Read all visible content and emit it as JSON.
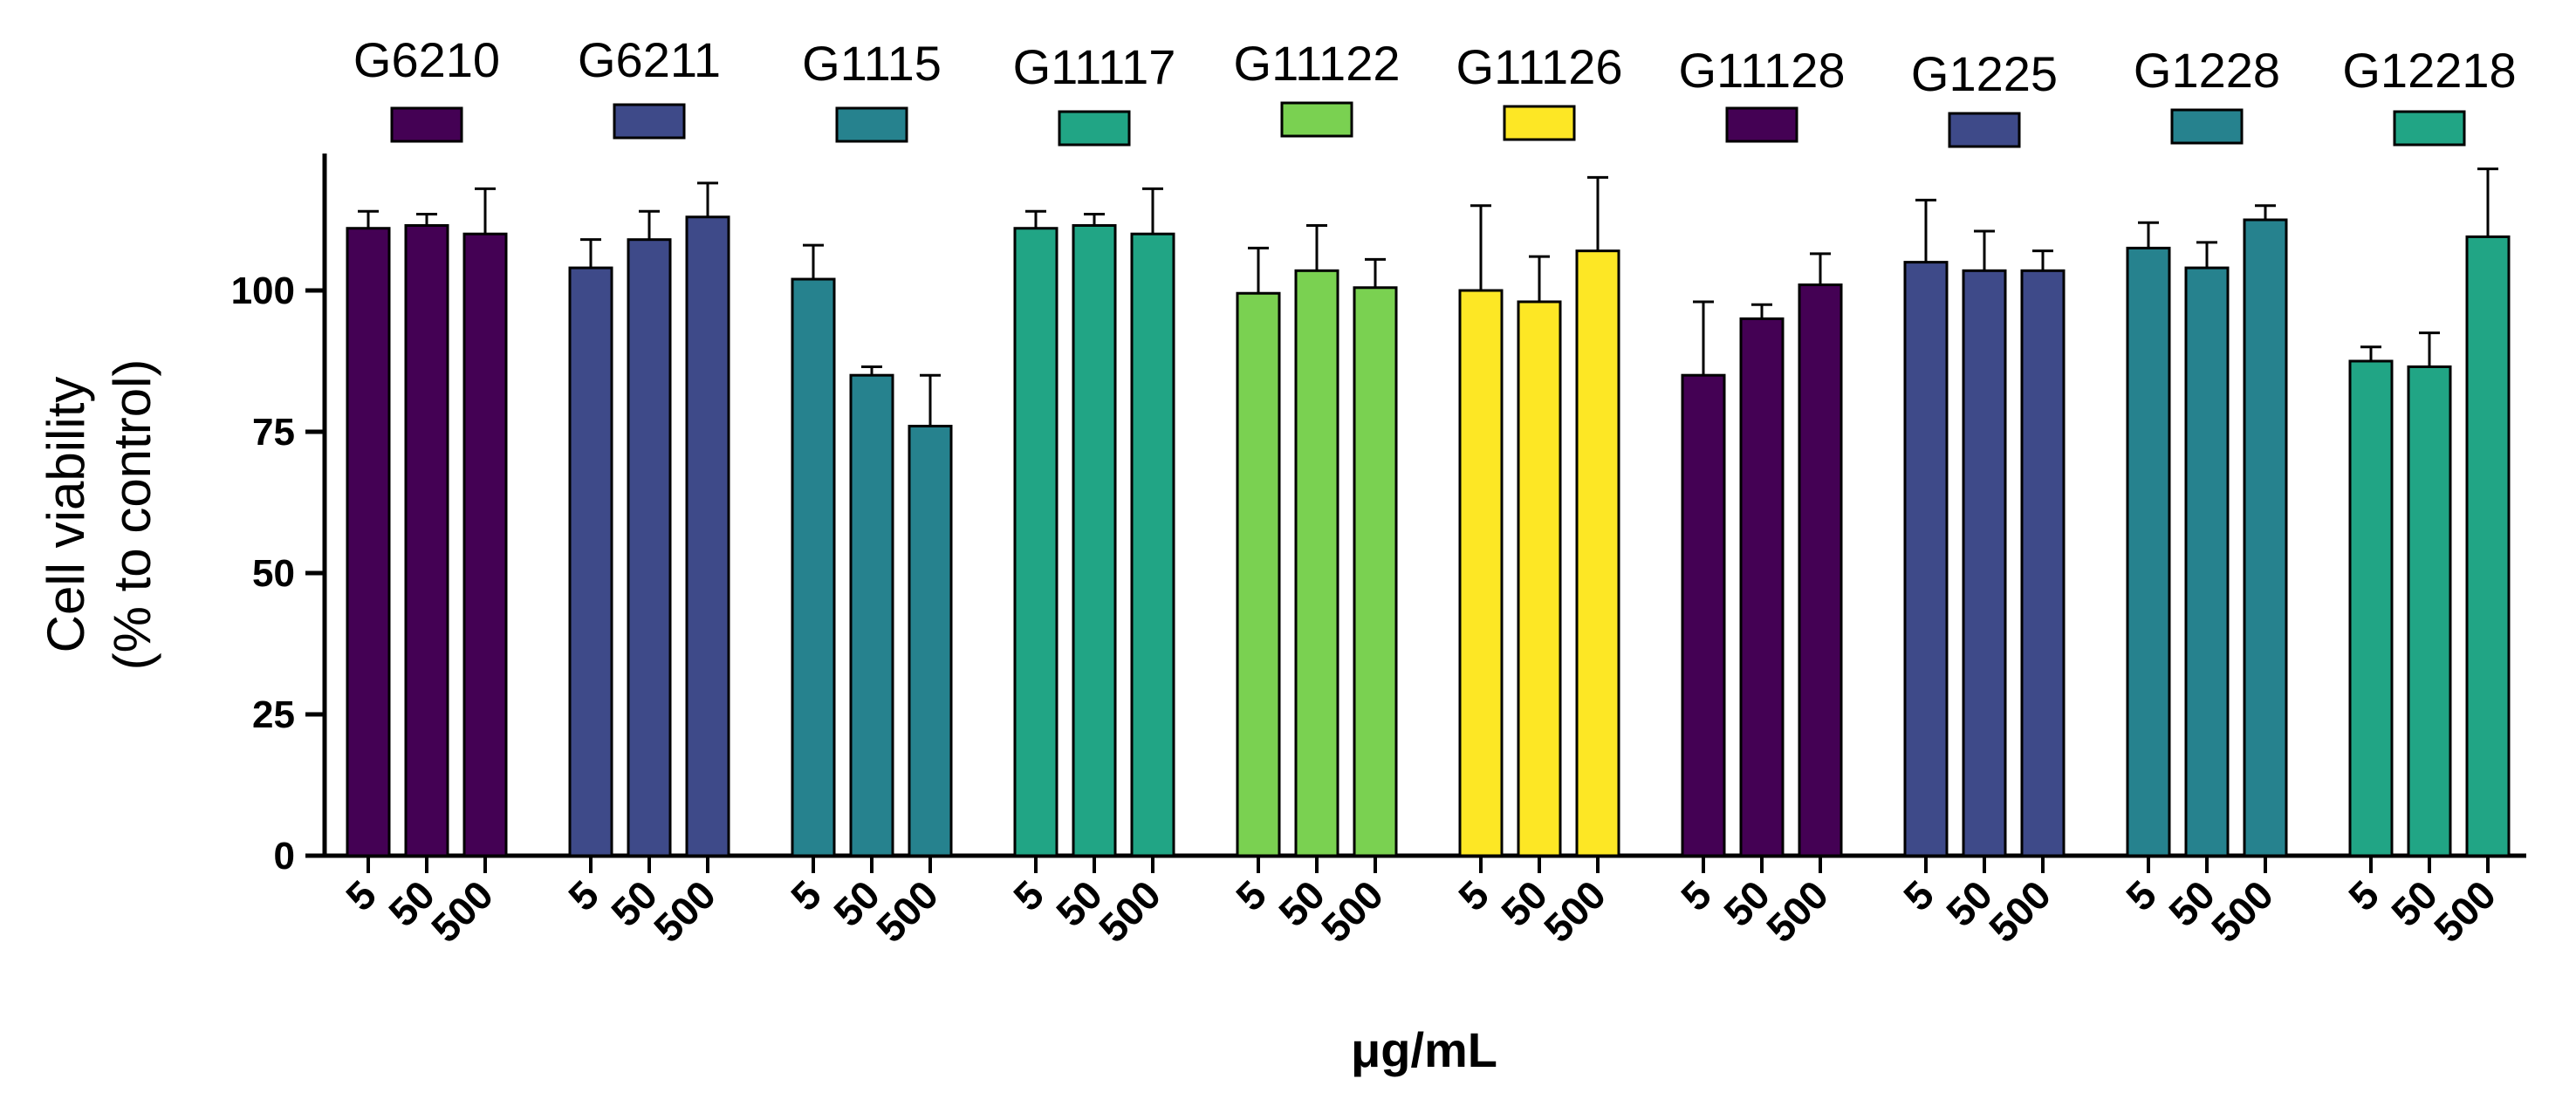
{
  "chart_data": {
    "type": "bar",
    "title": "",
    "xlabel": "μg/mL",
    "ylabel_lines": [
      "Cell viability",
      "(% to control)"
    ],
    "ylim": [
      0,
      125
    ],
    "yticks": [
      "0",
      "25",
      "50",
      "75",
      "100"
    ],
    "ytick_values": [
      0,
      25,
      50,
      75,
      100
    ],
    "dose_labels": [
      "5",
      "50",
      "500"
    ],
    "groups": [
      {
        "name": "G6210",
        "color": "#440154",
        "values": [
          111,
          111.5,
          110
        ],
        "errors": [
          3,
          2,
          8
        ]
      },
      {
        "name": "G6211",
        "color": "#3e4a89",
        "values": [
          104,
          109,
          113
        ],
        "errors": [
          5,
          5,
          6
        ]
      },
      {
        "name": "G1115",
        "color": "#26828e",
        "values": [
          102,
          85,
          76
        ],
        "errors": [
          6,
          1.5,
          9
        ]
      },
      {
        "name": "G11117",
        "color": "#21a585",
        "values": [
          111,
          111.5,
          110
        ],
        "errors": [
          3,
          2,
          8
        ]
      },
      {
        "name": "G11122",
        "color": "#7ad151",
        "values": [
          99.5,
          103.5,
          100.5
        ],
        "errors": [
          8,
          8,
          5
        ]
      },
      {
        "name": "G11126",
        "color": "#fde725",
        "values": [
          100,
          98,
          107
        ],
        "errors": [
          15,
          8,
          13
        ]
      },
      {
        "name": "G11128",
        "color": "#440154",
        "values": [
          85,
          95,
          101
        ],
        "errors": [
          13,
          2.5,
          5.5
        ]
      },
      {
        "name": "G1225",
        "color": "#3e4a89",
        "values": [
          105,
          103.5,
          103.5
        ],
        "errors": [
          11,
          7,
          3.5
        ]
      },
      {
        "name": "G1228",
        "color": "#26828e",
        "values": [
          107.5,
          104,
          112.5
        ],
        "errors": [
          4.5,
          4.5,
          2.5
        ]
      },
      {
        "name": "G12218",
        "color": "#21a585",
        "values": [
          87.5,
          86.5,
          109.5
        ],
        "errors": [
          2.5,
          6,
          12
        ]
      }
    ],
    "grid": false,
    "legend_position": "top"
  }
}
